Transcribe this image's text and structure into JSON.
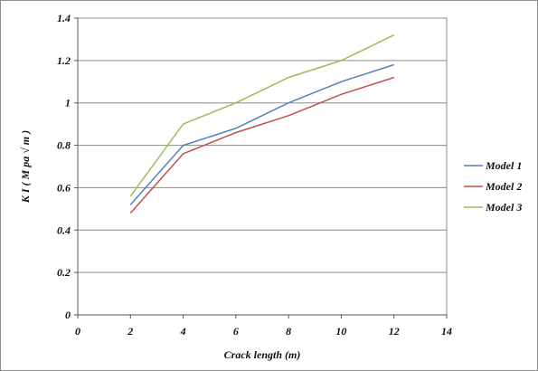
{
  "chart_data": {
    "type": "line",
    "title": "",
    "xlabel": "Crack length (m)",
    "ylabel": "K I ( M pa √ m )",
    "xlim": [
      0,
      14
    ],
    "ylim": [
      0,
      1.4
    ],
    "xticks": [
      0,
      2,
      4,
      6,
      8,
      10,
      12,
      14
    ],
    "yticks": [
      0,
      0.2,
      0.4,
      0.6,
      0.8,
      1,
      1.2,
      1.4
    ],
    "xtick_labels": [
      "0",
      "2",
      "4",
      "6",
      "8",
      "10",
      "12",
      "14"
    ],
    "ytick_labels": [
      "0",
      "0.2",
      "0.4",
      "0.6",
      "0.8",
      "1",
      "1.2",
      "1.4"
    ],
    "grid": "horizontal",
    "legend_position": "right",
    "x": [
      2,
      4,
      6,
      8,
      10,
      12
    ],
    "series": [
      {
        "name": "Model 1",
        "color": "#4f81bd",
        "values": [
          0.52,
          0.8,
          0.88,
          1.0,
          1.1,
          1.18
        ]
      },
      {
        "name": "Model 2",
        "color": "#c0504d",
        "values": [
          0.48,
          0.76,
          0.86,
          0.94,
          1.04,
          1.12
        ]
      },
      {
        "name": "Model 3",
        "color": "#9bbb59",
        "values": [
          0.56,
          0.9,
          1.0,
          1.12,
          1.2,
          1.32
        ]
      }
    ]
  }
}
